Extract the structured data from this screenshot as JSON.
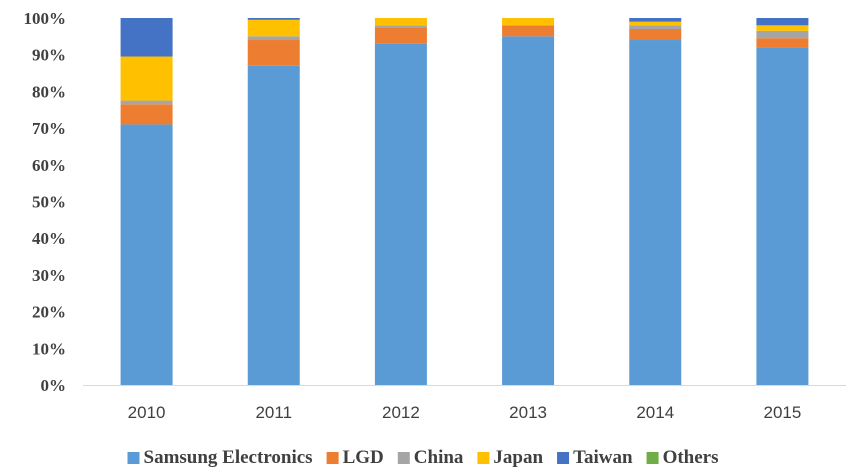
{
  "chart_data": {
    "type": "bar",
    "stacked": true,
    "title": "",
    "xlabel": "",
    "ylabel": "",
    "categories": [
      "2010",
      "2011",
      "2012",
      "2013",
      "2014",
      "2015"
    ],
    "y_ticks": [
      "0%",
      "10%",
      "20%",
      "30%",
      "40%",
      "50%",
      "60%",
      "70%",
      "80%",
      "90%",
      "100%"
    ],
    "ylim": [
      0,
      100
    ],
    "grid": false,
    "legend_position": "bottom",
    "series": [
      {
        "name": "Samsung Electronics",
        "color": "#5B9BD5",
        "values": [
          71,
          87,
          93,
          95,
          94,
          92
        ]
      },
      {
        "name": "LGD",
        "color": "#ED7D31",
        "values": [
          5.5,
          7,
          4.5,
          3,
          3,
          2.5
        ]
      },
      {
        "name": "China",
        "color": "#A5A5A5",
        "values": [
          1,
          1,
          0.5,
          0,
          1,
          2
        ]
      },
      {
        "name": "Japan",
        "color": "#FFC000",
        "values": [
          12,
          4.5,
          2,
          2,
          1,
          1.5
        ]
      },
      {
        "name": "Taiwan",
        "color": "#4472C4",
        "values": [
          10.5,
          0.5,
          0,
          0,
          1,
          2
        ]
      },
      {
        "name": "Others",
        "color": "#70AD47",
        "values": [
          0,
          0,
          0,
          0,
          0,
          0
        ]
      }
    ]
  }
}
